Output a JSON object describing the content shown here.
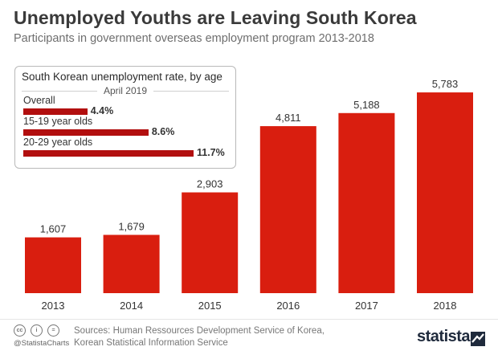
{
  "header": {
    "title": "Unemployed Youths are Leaving South Korea",
    "subtitle": "Participants in government overseas employment program 2013-2018"
  },
  "chart_data": {
    "type": "bar",
    "categories": [
      "2013",
      "2014",
      "2015",
      "2016",
      "2017",
      "2018"
    ],
    "values": [
      1607,
      1679,
      2903,
      4811,
      5188,
      5783
    ],
    "value_labels": [
      "1,607",
      "1,679",
      "2,903",
      "4,811",
      "5,188",
      "5,783"
    ],
    "ylim": [
      0,
      5900
    ],
    "grid": false,
    "bar_color": "#d91e0f"
  },
  "inset": {
    "title": "South Korean unemployment rate, by age",
    "date": "April 2019",
    "bar_color": "#b20f0f",
    "max": 11.7,
    "rows": [
      {
        "label": "Overall",
        "value": 4.4,
        "value_label": "4.4%"
      },
      {
        "label": "15-19 year olds",
        "value": 8.6,
        "value_label": "8.6%"
      },
      {
        "label": "20-29 year olds",
        "value": 11.7,
        "value_label": "11.7%"
      }
    ]
  },
  "footer": {
    "handle": "@StatistaCharts",
    "sources_line1": "Sources: Human Ressources Development Service of Korea,",
    "sources_line2": "Korean Statistical Information Service",
    "brand": "statista",
    "license_icons": [
      "cc",
      "i",
      "="
    ]
  }
}
